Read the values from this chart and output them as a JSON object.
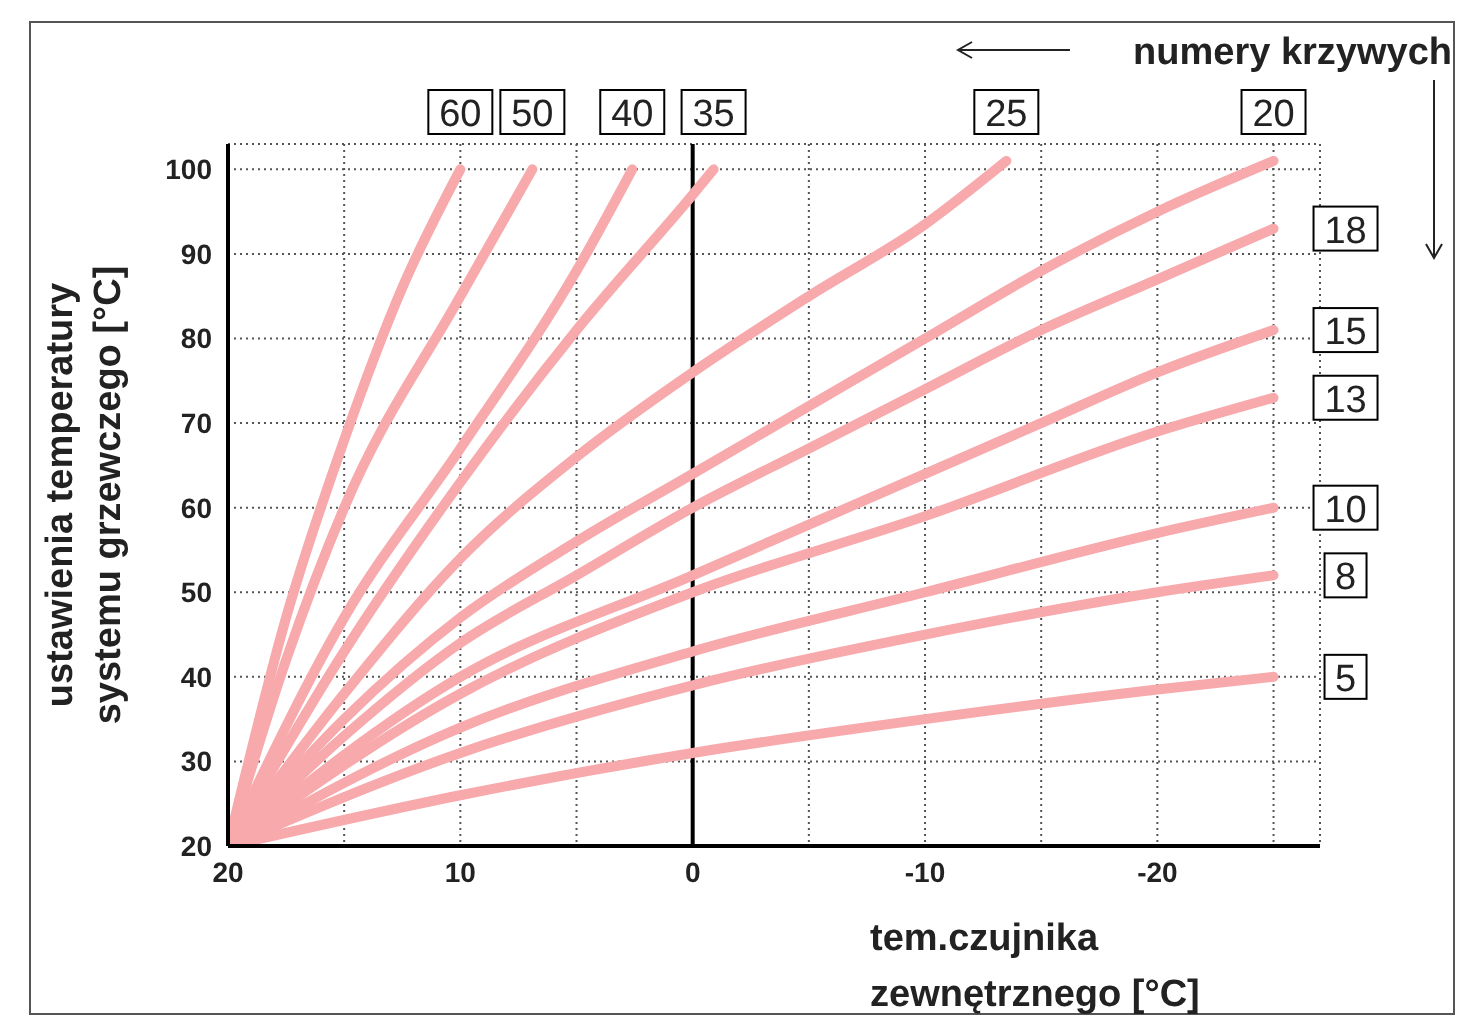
{
  "chart_data": {
    "type": "line",
    "xlabel": "tem.czujnika\nzewnętrznego [°C]",
    "ylabel": "ustawienia temperatury\nsystemu grzewczego [°C]",
    "annotations": [
      "numery krzywych"
    ],
    "xlim": [
      20,
      -27
    ],
    "ylim": [
      20,
      103
    ],
    "xticks": [
      20,
      {
        "value": 15,
        "label": null
      },
      10,
      {
        "value": 5,
        "label": null
      },
      0,
      {
        "value": -5,
        "label": null
      },
      -10,
      {
        "value": -15,
        "label": null
      },
      -20,
      {
        "value": -25,
        "label": null
      }
    ],
    "yticks": [
      20,
      30,
      40,
      50,
      60,
      70,
      80,
      90,
      100
    ],
    "grid": true,
    "legend": false,
    "marker": "none",
    "line_style": "solid",
    "ref_lines": [
      {
        "axis": "x",
        "value": 0,
        "color": "#000000"
      }
    ],
    "series": [
      {
        "name": "60",
        "color": "#f7a9ab",
        "x": [
          20,
          17.5,
          15,
          12.5,
          10
        ],
        "values": [
          20,
          47,
          68,
          86,
          100
        ]
      },
      {
        "name": "50",
        "color": "#f7a9ab",
        "x": [
          20,
          17.5,
          15,
          10,
          6.9
        ],
        "values": [
          20,
          42,
          60,
          85,
          100
        ]
      },
      {
        "name": "40",
        "color": "#f7a9ab",
        "x": [
          20,
          15,
          10,
          5,
          2.6
        ],
        "values": [
          20,
          47,
          67,
          88,
          100
        ]
      },
      {
        "name": "35",
        "color": "#f7a9ab",
        "x": [
          20,
          15,
          10,
          5,
          0,
          -0.9
        ],
        "values": [
          20,
          43,
          63,
          81,
          97,
          100
        ]
      },
      {
        "name": "25",
        "color": "#f7a9ab",
        "x": [
          20,
          15,
          10,
          5,
          0,
          -5,
          -10,
          -13.5
        ],
        "values": [
          20,
          38,
          54,
          66,
          76,
          85,
          93.5,
          101
        ]
      },
      {
        "name": "20",
        "color": "#f7a9ab",
        "x": [
          20,
          15,
          10,
          5,
          0,
          -5,
          -10,
          -15,
          -20,
          -25
        ],
        "values": [
          20,
          35,
          47,
          56,
          64,
          72,
          80,
          88,
          95,
          101
        ]
      },
      {
        "name": "18",
        "color": "#f7a9ab",
        "x": [
          20,
          15,
          10,
          5,
          0,
          -5,
          -10,
          -15,
          -20,
          -25
        ],
        "values": [
          20,
          33,
          44,
          52,
          60,
          67,
          74,
          81,
          87,
          93
        ]
      },
      {
        "name": "15",
        "color": "#f7a9ab",
        "x": [
          20,
          10,
          0,
          -5,
          -10,
          -15,
          -20,
          -25
        ],
        "values": [
          20,
          40,
          52,
          58,
          64,
          70,
          76,
          81
        ]
      },
      {
        "name": "13",
        "color": "#f7a9ab",
        "x": [
          20,
          10,
          0,
          -10,
          -20,
          -25
        ],
        "values": [
          20,
          38,
          50,
          59,
          69,
          73
        ]
      },
      {
        "name": "10",
        "color": "#f7a9ab",
        "x": [
          20,
          10,
          0,
          -10,
          -20,
          -25
        ],
        "values": [
          20,
          34,
          43,
          50,
          57,
          60
        ]
      },
      {
        "name": "8",
        "color": "#f7a9ab",
        "x": [
          20,
          10,
          0,
          -10,
          -20,
          -25
        ],
        "values": [
          20,
          31,
          39,
          45,
          50,
          52
        ]
      },
      {
        "name": "5",
        "color": "#f7a9ab",
        "x": [
          20,
          10,
          0,
          -10,
          -20,
          -25
        ],
        "values": [
          20,
          26,
          31,
          35,
          38.5,
          40
        ]
      }
    ]
  }
}
